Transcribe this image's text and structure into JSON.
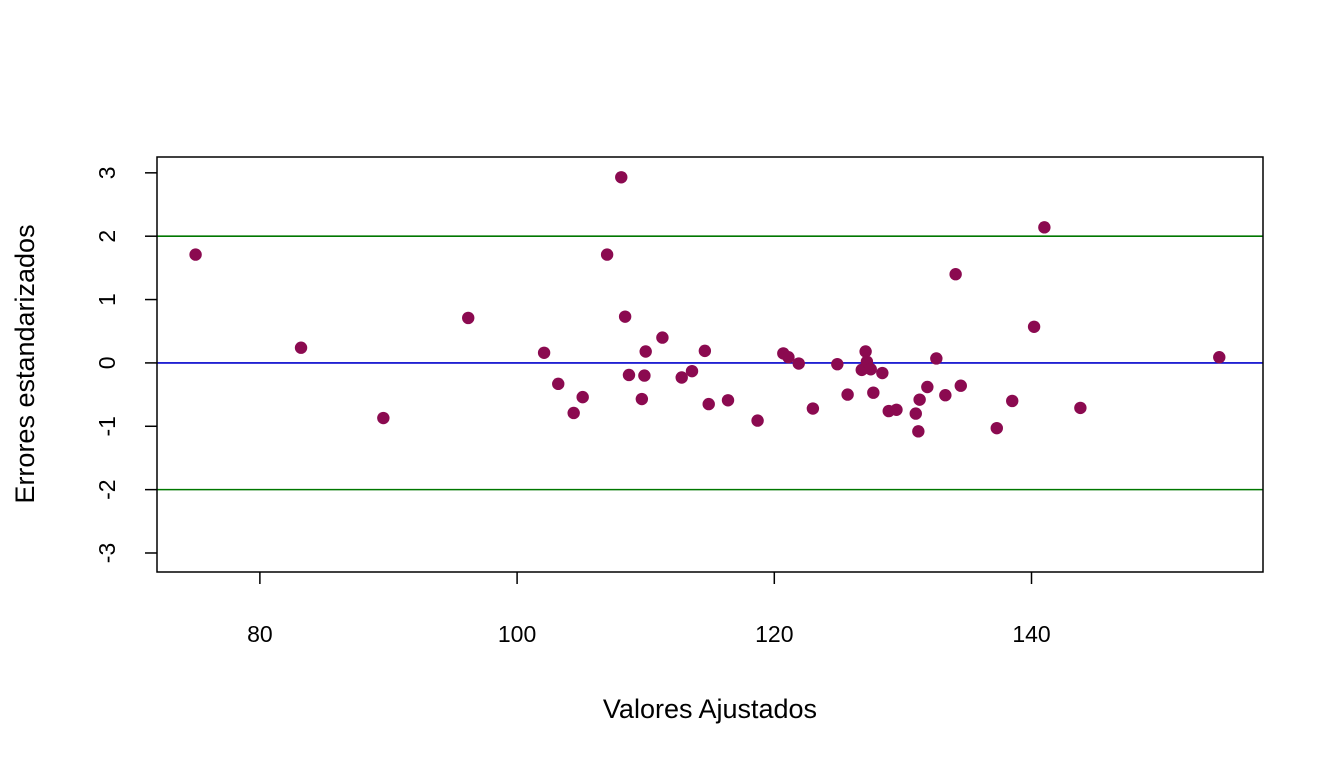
{
  "chart_data": {
    "type": "scatter",
    "title": "",
    "xlabel": "Valores Ajustados",
    "ylabel": "Errores estandarizados",
    "xlim": [
      72,
      158
    ],
    "ylim": [
      -3.3,
      3.25
    ],
    "xticks": [
      80,
      100,
      120,
      140
    ],
    "yticks": [
      -3,
      -2,
      -1,
      0,
      1,
      2,
      3
    ],
    "grid": false,
    "legend": "none",
    "point_color": "#8B0A50",
    "reference_lines": [
      {
        "y": 2,
        "color": "#007700"
      },
      {
        "y": 0,
        "color": "#0000CC"
      },
      {
        "y": -2,
        "color": "#007700"
      }
    ],
    "points": [
      {
        "x": 75.0,
        "y": 1.71
      },
      {
        "x": 83.2,
        "y": 0.24
      },
      {
        "x": 89.6,
        "y": -0.87
      },
      {
        "x": 96.2,
        "y": 0.71
      },
      {
        "x": 102.1,
        "y": 0.16
      },
      {
        "x": 103.2,
        "y": -0.33
      },
      {
        "x": 104.4,
        "y": -0.79
      },
      {
        "x": 105.1,
        "y": -0.54
      },
      {
        "x": 107.0,
        "y": 1.71
      },
      {
        "x": 108.1,
        "y": 2.93
      },
      {
        "x": 108.4,
        "y": 0.73
      },
      {
        "x": 108.7,
        "y": -0.19
      },
      {
        "x": 109.7,
        "y": -0.57
      },
      {
        "x": 109.9,
        "y": -0.2
      },
      {
        "x": 110.0,
        "y": 0.18
      },
      {
        "x": 111.3,
        "y": 0.4
      },
      {
        "x": 112.8,
        "y": -0.23
      },
      {
        "x": 113.6,
        "y": -0.13
      },
      {
        "x": 114.6,
        "y": 0.19
      },
      {
        "x": 114.9,
        "y": -0.65
      },
      {
        "x": 116.4,
        "y": -0.59
      },
      {
        "x": 118.7,
        "y": -0.91
      },
      {
        "x": 120.7,
        "y": 0.15
      },
      {
        "x": 121.1,
        "y": 0.09
      },
      {
        "x": 121.9,
        "y": -0.01
      },
      {
        "x": 123.0,
        "y": -0.72
      },
      {
        "x": 124.9,
        "y": -0.02
      },
      {
        "x": 125.7,
        "y": -0.5
      },
      {
        "x": 126.8,
        "y": -0.11
      },
      {
        "x": 127.1,
        "y": 0.18
      },
      {
        "x": 127.2,
        "y": 0.02
      },
      {
        "x": 127.5,
        "y": -0.1
      },
      {
        "x": 127.7,
        "y": -0.47
      },
      {
        "x": 128.4,
        "y": -0.16
      },
      {
        "x": 128.9,
        "y": -0.76
      },
      {
        "x": 129.5,
        "y": -0.74
      },
      {
        "x": 131.0,
        "y": -0.8
      },
      {
        "x": 131.2,
        "y": -1.08
      },
      {
        "x": 131.3,
        "y": -0.58
      },
      {
        "x": 131.9,
        "y": -0.38
      },
      {
        "x": 132.6,
        "y": 0.07
      },
      {
        "x": 133.3,
        "y": -0.51
      },
      {
        "x": 134.1,
        "y": 1.4
      },
      {
        "x": 134.5,
        "y": -0.36
      },
      {
        "x": 137.3,
        "y": -1.03
      },
      {
        "x": 138.5,
        "y": -0.6
      },
      {
        "x": 140.2,
        "y": 0.57
      },
      {
        "x": 141.0,
        "y": 2.14
      },
      {
        "x": 143.8,
        "y": -0.71
      },
      {
        "x": 154.6,
        "y": 0.09
      }
    ]
  }
}
